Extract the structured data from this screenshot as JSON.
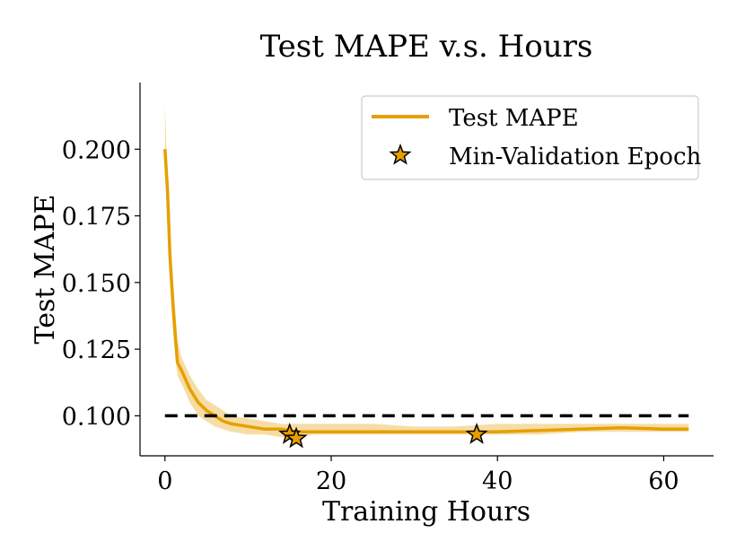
{
  "chart_data": {
    "type": "line",
    "title": "Test MAPE v.s. Hours",
    "xlabel": "Training Hours",
    "ylabel": "Test MAPE",
    "xlim": [
      -3,
      66
    ],
    "ylim": [
      0.085,
      0.225
    ],
    "xticks": [
      0,
      20,
      40,
      60
    ],
    "yticks": [
      0.1,
      0.125,
      0.15,
      0.175,
      0.2
    ],
    "xtick_labels": [
      "0",
      "20",
      "40",
      "60"
    ],
    "ytick_labels": [
      "0.100",
      "0.125",
      "0.150",
      "0.175",
      "0.200"
    ],
    "series": [
      {
        "name": "Test MAPE",
        "color": "#e69f00",
        "x": [
          0,
          0.3,
          0.6,
          1,
          1.5,
          2,
          3,
          4,
          5,
          6,
          7,
          8,
          10,
          12,
          14,
          16,
          18,
          20,
          25,
          30,
          35,
          40,
          45,
          50,
          55,
          60,
          63
        ],
        "y": [
          0.2,
          0.185,
          0.16,
          0.14,
          0.12,
          0.117,
          0.11,
          0.105,
          0.102,
          0.1,
          0.098,
          0.097,
          0.096,
          0.095,
          0.095,
          0.094,
          0.094,
          0.094,
          0.094,
          0.094,
          0.094,
          0.094,
          0.0945,
          0.095,
          0.0955,
          0.095,
          0.095
        ]
      }
    ],
    "band": {
      "upper": [
        0.217,
        0.19,
        0.17,
        0.15,
        0.128,
        0.122,
        0.115,
        0.11,
        0.106,
        0.104,
        0.102,
        0.1,
        0.099,
        0.098,
        0.097,
        0.097,
        0.097,
        0.097,
        0.097,
        0.096,
        0.096,
        0.097,
        0.097,
        0.097,
        0.097,
        0.097,
        0.097
      ],
      "lower": [
        0.19,
        0.175,
        0.15,
        0.13,
        0.115,
        0.112,
        0.105,
        0.1,
        0.098,
        0.096,
        0.095,
        0.094,
        0.093,
        0.093,
        0.092,
        0.092,
        0.093,
        0.093,
        0.093,
        0.093,
        0.093,
        0.093,
        0.093,
        0.094,
        0.094,
        0.094,
        0.094
      ]
    },
    "reference_line": {
      "y": 0.1,
      "x_range": [
        0,
        63
      ],
      "style": "dashed",
      "color": "#000000"
    },
    "markers": {
      "name": "Min-Validation Epoch",
      "shape": "star",
      "color": "#e69f00",
      "points": [
        {
          "x": 15.0,
          "y": 0.093
        },
        {
          "x": 15.8,
          "y": 0.0915
        },
        {
          "x": 37.5,
          "y": 0.093
        }
      ]
    },
    "legend": {
      "position": "top-right",
      "entries": [
        "Test MAPE",
        "Min-Validation Epoch"
      ]
    },
    "grid": false
  }
}
